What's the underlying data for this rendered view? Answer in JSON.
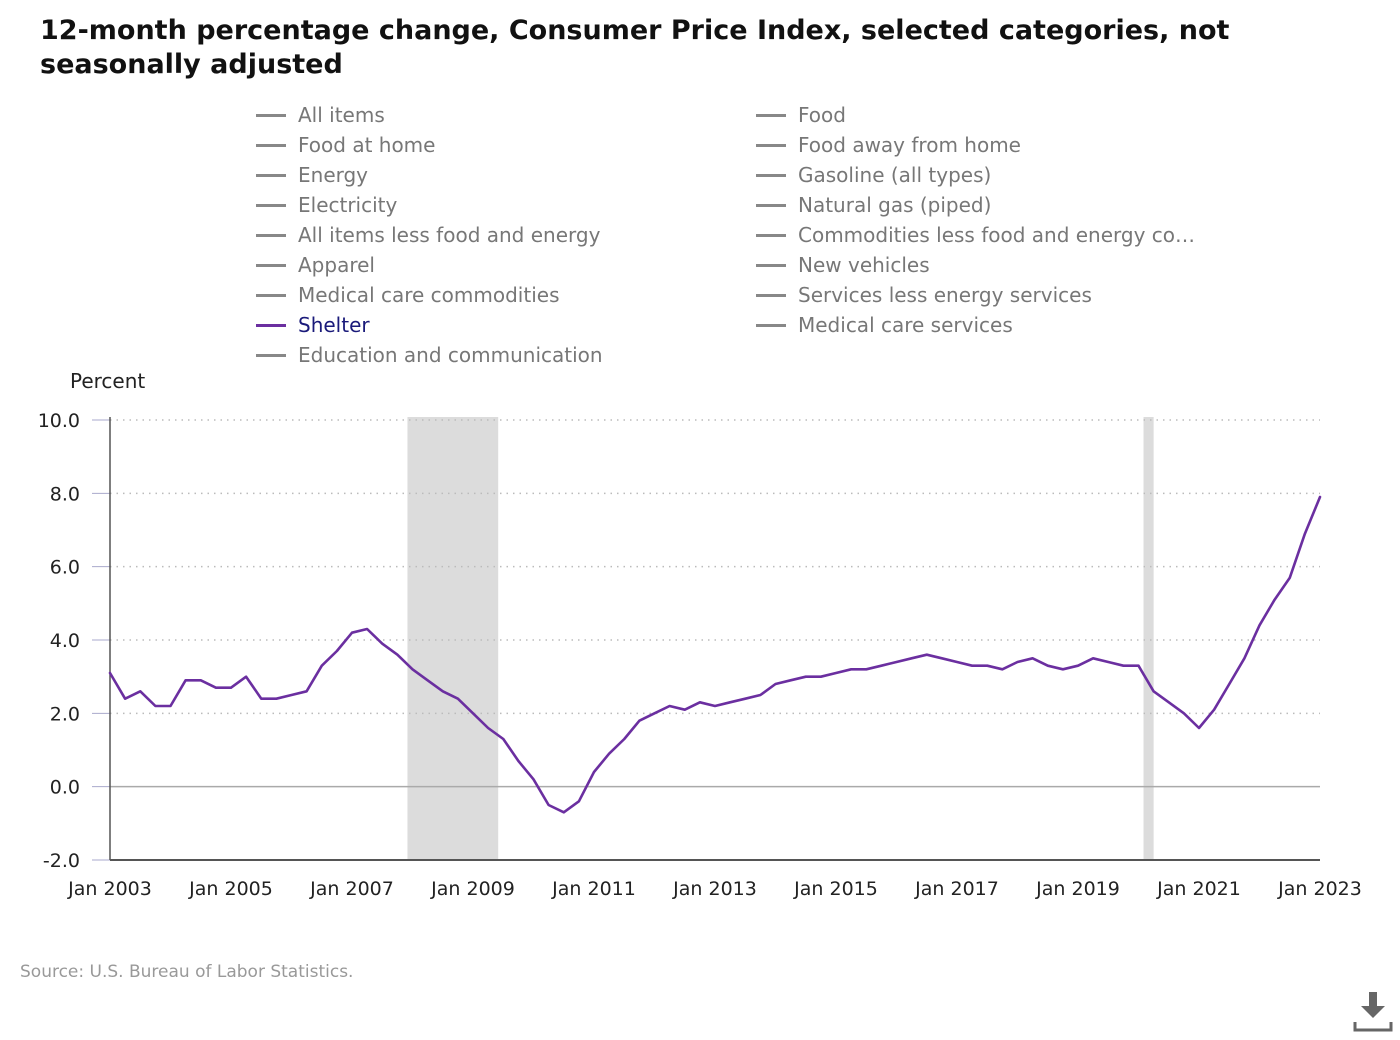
{
  "title": "12-month percentage change, Consumer Price Index, selected categories, not seasonally adjusted",
  "legend": {
    "left": [
      {
        "label": "All items",
        "active": false
      },
      {
        "label": "Food at home",
        "active": false
      },
      {
        "label": "Energy",
        "active": false
      },
      {
        "label": "Electricity",
        "active": false
      },
      {
        "label": "All items less food and energy",
        "active": false
      },
      {
        "label": "Apparel",
        "active": false
      },
      {
        "label": "Medical care commodities",
        "active": false
      },
      {
        "label": "Shelter",
        "active": true
      },
      {
        "label": "Education and communication",
        "active": false
      }
    ],
    "right": [
      {
        "label": "Food",
        "active": false
      },
      {
        "label": "Food away from home",
        "active": false
      },
      {
        "label": "Gasoline (all types)",
        "active": false
      },
      {
        "label": "Natural gas (piped)",
        "active": false
      },
      {
        "label": "Commodities less food and energy com…",
        "active": false
      },
      {
        "label": "New vehicles",
        "active": false
      },
      {
        "label": "Services less energy services",
        "active": false
      },
      {
        "label": "Medical care services",
        "active": false
      }
    ]
  },
  "source": "Source: U.S. Bureau of Labor Statistics.",
  "colors": {
    "shelter": "#6b2fa0",
    "recession": "#dcdcdc",
    "grid": "#bbbbbb",
    "axis": "#555555"
  },
  "icons": {
    "download": "download-icon"
  },
  "chart_data": {
    "type": "line",
    "ylabel": "Percent",
    "ylim": [
      -2.0,
      10.0
    ],
    "yticks": [
      "10.0",
      "8.0",
      "6.0",
      "4.0",
      "2.0",
      "0.0",
      "-2.0"
    ],
    "xlim": [
      "2003-01",
      "2023-01"
    ],
    "xticks": [
      "Jan 2003",
      "Jan 2005",
      "Jan 2007",
      "Jan 2009",
      "Jan 2011",
      "Jan 2013",
      "Jan 2015",
      "Jan 2017",
      "Jan 2019",
      "Jan 2021",
      "Jan 2023"
    ],
    "grid": "horizontal dotted",
    "recessions": [
      {
        "start": "2007-12",
        "end": "2009-06"
      },
      {
        "start": "2020-02",
        "end": "2020-04"
      }
    ],
    "series": [
      {
        "name": "Shelter",
        "color": "#6b2fa0",
        "x": [
          "2003-01",
          "2003-04",
          "2003-07",
          "2003-10",
          "2004-01",
          "2004-04",
          "2004-07",
          "2004-10",
          "2005-01",
          "2005-04",
          "2005-07",
          "2005-10",
          "2006-01",
          "2006-04",
          "2006-07",
          "2006-10",
          "2007-01",
          "2007-04",
          "2007-07",
          "2007-10",
          "2008-01",
          "2008-04",
          "2008-07",
          "2008-10",
          "2009-01",
          "2009-04",
          "2009-07",
          "2009-10",
          "2010-01",
          "2010-04",
          "2010-07",
          "2010-10",
          "2011-01",
          "2011-04",
          "2011-07",
          "2011-10",
          "2012-01",
          "2012-04",
          "2012-07",
          "2012-10",
          "2013-01",
          "2013-04",
          "2013-07",
          "2013-10",
          "2014-01",
          "2014-04",
          "2014-07",
          "2014-10",
          "2015-01",
          "2015-04",
          "2015-07",
          "2015-10",
          "2016-01",
          "2016-04",
          "2016-07",
          "2016-10",
          "2017-01",
          "2017-04",
          "2017-07",
          "2017-10",
          "2018-01",
          "2018-04",
          "2018-07",
          "2018-10",
          "2019-01",
          "2019-04",
          "2019-07",
          "2019-10",
          "2020-01",
          "2020-04",
          "2020-07",
          "2020-10",
          "2021-01",
          "2021-04",
          "2021-07",
          "2021-10",
          "2022-01",
          "2022-04",
          "2022-07",
          "2022-10",
          "2023-01"
        ],
        "values": [
          3.1,
          2.4,
          2.6,
          2.2,
          2.2,
          2.9,
          2.9,
          2.7,
          2.7,
          3.0,
          2.4,
          2.4,
          2.5,
          2.6,
          3.3,
          3.7,
          4.2,
          4.3,
          3.9,
          3.6,
          3.2,
          2.9,
          2.6,
          2.4,
          2.0,
          1.6,
          1.3,
          0.7,
          0.2,
          -0.5,
          -0.7,
          -0.4,
          0.4,
          0.9,
          1.3,
          1.8,
          2.0,
          2.2,
          2.1,
          2.3,
          2.2,
          2.3,
          2.4,
          2.5,
          2.8,
          2.9,
          3.0,
          3.0,
          3.1,
          3.2,
          3.2,
          3.3,
          3.4,
          3.5,
          3.6,
          3.5,
          3.4,
          3.3,
          3.3,
          3.2,
          3.4,
          3.5,
          3.3,
          3.2,
          3.3,
          3.5,
          3.4,
          3.3,
          3.3,
          2.6,
          2.3,
          2.0,
          1.6,
          2.1,
          2.8,
          3.5,
          4.4,
          5.1,
          5.7,
          6.9,
          7.9
        ]
      }
    ]
  }
}
